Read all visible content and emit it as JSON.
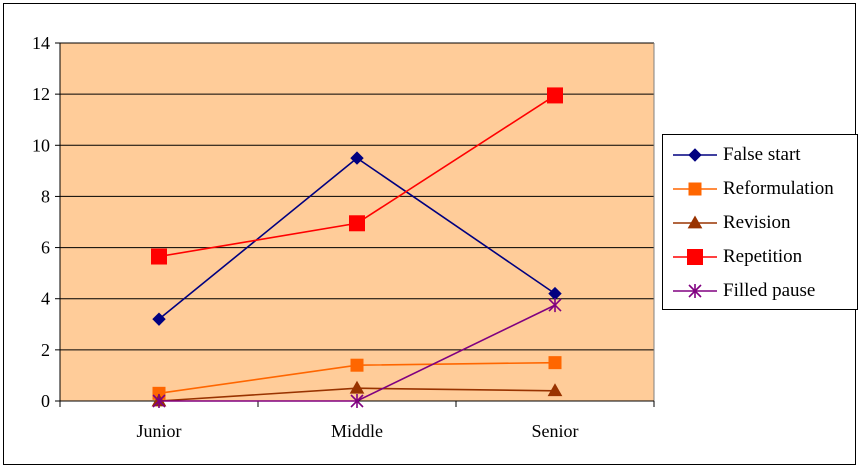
{
  "chart_data": {
    "type": "line",
    "title": "",
    "xlabel": "",
    "ylabel": "",
    "categories": [
      "Junior",
      "Middle",
      "Senior"
    ],
    "ylim": [
      0,
      14
    ],
    "yticks": [
      0,
      2,
      4,
      6,
      8,
      10,
      12,
      14
    ],
    "grid": true,
    "plot_background": "#FFCC99",
    "legend_position": "right",
    "series": [
      {
        "name": "False start",
        "values": [
          3.2,
          9.5,
          4.2
        ],
        "color": "#000080",
        "marker": "diamond"
      },
      {
        "name": "Reformulation",
        "values": [
          0.3,
          1.4,
          1.5
        ],
        "color": "#FF6600",
        "marker": "square"
      },
      {
        "name": "Revision",
        "values": [
          0.0,
          0.5,
          0.4
        ],
        "color": "#993300",
        "marker": "triangle"
      },
      {
        "name": "Repetition",
        "values": [
          5.65,
          6.95,
          11.95
        ],
        "color": "#FF0000",
        "marker": "square-large"
      },
      {
        "name": "Filled pause",
        "values": [
          0.0,
          0.0,
          3.75
        ],
        "color": "#800080",
        "marker": "asterisk"
      }
    ]
  }
}
